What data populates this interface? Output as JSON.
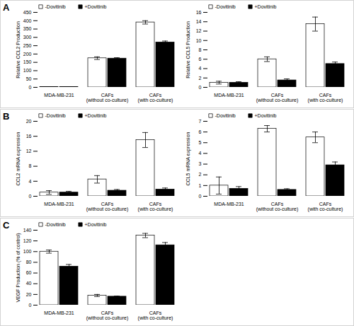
{
  "chart_data": [
    {
      "type": "bar",
      "annotations": [
        "A"
      ],
      "categories": [
        "MDA-MB-231",
        "CAFs (without co-culture)",
        "CAFs (with co-culture)"
      ],
      "series": [
        {
          "name": "-Dovitinib",
          "color": "white",
          "values": [
            2,
            175,
            390
          ],
          "errors": [
            1,
            8,
            10
          ]
        },
        {
          "name": "+Dovitinib",
          "color": "black",
          "values": [
            2,
            173,
            270
          ],
          "errors": [
            1,
            5,
            8
          ]
        }
      ],
      "ylabel": "Relative CCL2 Production",
      "ylim": [
        0,
        450
      ],
      "yticks": [
        0,
        50,
        100,
        150,
        200,
        250,
        300,
        350,
        400,
        450
      ],
      "legend": "upper left",
      "grid": false
    },
    {
      "type": "bar",
      "categories": [
        "MDA-MB-231",
        "CAFs (without co-culture)",
        "CAFs (with co-culture)"
      ],
      "series": [
        {
          "name": "-Dovitinib",
          "color": "white",
          "values": [
            1.0,
            6.0,
            13.5
          ],
          "errors": [
            0.3,
            0.5,
            1.5
          ]
        },
        {
          "name": "+Dovitinib",
          "color": "black",
          "values": [
            1.0,
            1.5,
            5.0
          ],
          "errors": [
            0.2,
            0.3,
            0.4
          ]
        }
      ],
      "ylabel": "Relative CCL5 Production",
      "ylim": [
        0,
        16
      ],
      "yticks": [
        0,
        2,
        4,
        6,
        8,
        10,
        12,
        14,
        16
      ],
      "legend": "upper left",
      "grid": false
    },
    {
      "type": "bar",
      "annotations": [
        "B"
      ],
      "categories": [
        "MDA-MB-231",
        "CAFs (without co-culture)",
        "CAFs (with co-culture)"
      ],
      "series": [
        {
          "name": "-Dovitinib",
          "color": "white",
          "values": [
            1.0,
            4.5,
            15.0
          ],
          "errors": [
            0.5,
            1.0,
            2.0
          ]
        },
        {
          "name": "+Dovitinib",
          "color": "black",
          "values": [
            1.0,
            1.5,
            1.8
          ],
          "errors": [
            0.3,
            0.3,
            0.4
          ]
        }
      ],
      "ylabel": "CCL2 mRNA expression",
      "ylim": [
        0,
        20
      ],
      "yticks": [
        0,
        4,
        8,
        12,
        16,
        20
      ],
      "legend": "upper left",
      "grid": false
    },
    {
      "type": "bar",
      "categories": [
        "MDA-MB-231",
        "CAFs (without co-culture)",
        "CAFs (with co-culture)"
      ],
      "series": [
        {
          "name": "-Dovitinib",
          "color": "white",
          "values": [
            1.0,
            6.3,
            5.5
          ],
          "errors": [
            0.8,
            0.3,
            0.5
          ]
        },
        {
          "name": "+Dovitinib",
          "color": "black",
          "values": [
            0.7,
            0.6,
            2.9
          ],
          "errors": [
            0.2,
            0.1,
            0.3
          ]
        }
      ],
      "ylabel": "CCL5 mRNA expression",
      "ylim": [
        0,
        7
      ],
      "yticks": [
        0,
        1,
        2,
        3,
        4,
        5,
        6,
        7
      ],
      "legend": "upper left",
      "grid": false
    },
    {
      "type": "bar",
      "annotations": [
        "C"
      ],
      "categories": [
        "MDA-MB-231",
        "CAFs (without co-culture)",
        "CAFs (with co-culture)"
      ],
      "series": [
        {
          "name": "-Dovitinib",
          "color": "white",
          "values": [
            100,
            18,
            130
          ],
          "errors": [
            3,
            2,
            4
          ]
        },
        {
          "name": "+Dovitinib",
          "color": "black",
          "values": [
            72,
            16,
            112
          ],
          "errors": [
            4,
            1,
            5
          ]
        }
      ],
      "ylabel": "VEGF Production (% of control)",
      "ylim": [
        0,
        140
      ],
      "yticks": [
        0,
        20,
        40,
        60,
        80,
        100,
        120,
        140
      ],
      "legend": "upper left",
      "grid": false
    }
  ]
}
